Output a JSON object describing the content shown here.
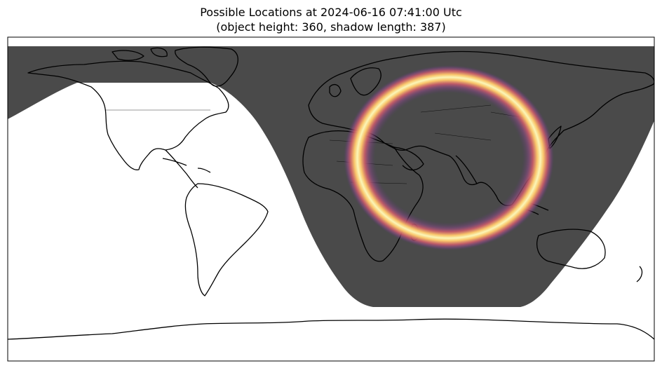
{
  "figure": {
    "title_line1": "Possible Locations at 2024-06-16 07:41:00 Utc",
    "title_line2": "(object height: 360, shadow length: 387)"
  },
  "map": {
    "projection": "plate-carree",
    "background_color": "#ffffff",
    "night_color": "#4a4a4a",
    "coastline_color": "#000000",
    "ring_colormap": [
      "#fbf6b8",
      "#f9c56a",
      "#f08a4e",
      "#cc5d6b",
      "#8e4a86",
      "#5a3a78"
    ],
    "ring_center": {
      "lon": 80,
      "lat": 30
    },
    "ring_angular_radius_deg": 43,
    "terminator_subsolar": {
      "lon": 64.7,
      "lat": 23.3
    }
  }
}
